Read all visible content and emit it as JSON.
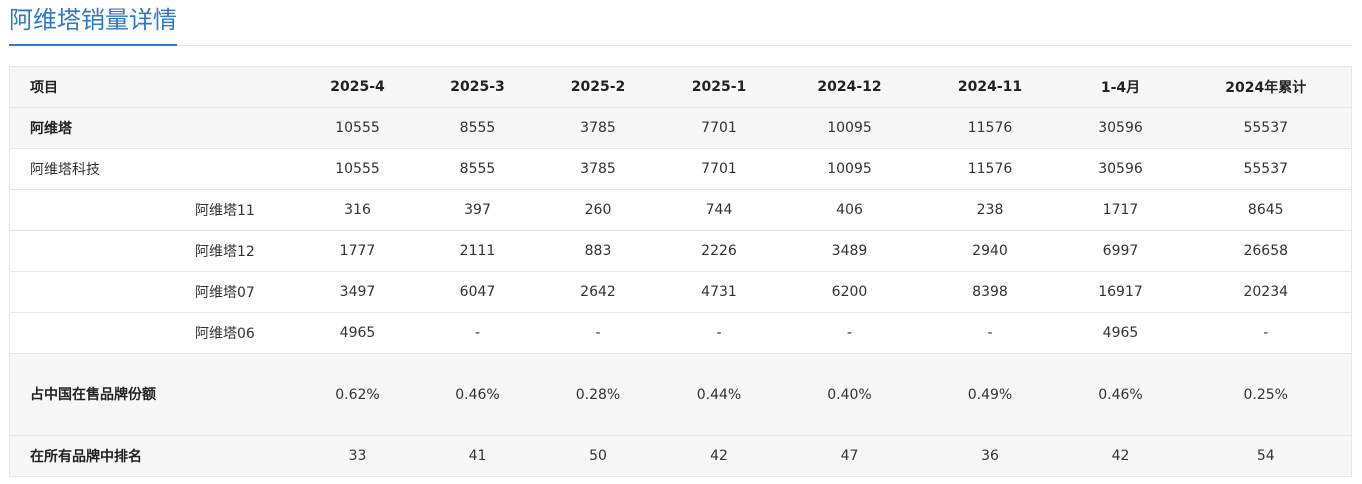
{
  "page_title": "阿维塔销量详情",
  "table": {
    "headers": [
      "项目",
      "2025-4",
      "2025-3",
      "2025-2",
      "2025-1",
      "2024-12",
      "2024-11",
      "1-4月",
      "2024年累计"
    ],
    "rows": [
      {
        "label": "阿维塔",
        "values": [
          "10555",
          "8555",
          "3785",
          "7701",
          "10095",
          "11576",
          "30596",
          "55537"
        ]
      },
      {
        "label": "阿维塔科技",
        "values": [
          "10555",
          "8555",
          "3785",
          "7701",
          "10095",
          "11576",
          "30596",
          "55537"
        ]
      },
      {
        "label": "阿维塔11",
        "values": [
          "316",
          "397",
          "260",
          "744",
          "406",
          "238",
          "1717",
          "8645"
        ]
      },
      {
        "label": "阿维塔12",
        "values": [
          "1777",
          "2111",
          "883",
          "2226",
          "3489",
          "2940",
          "6997",
          "26658"
        ]
      },
      {
        "label": "阿维塔07",
        "values": [
          "3497",
          "6047",
          "2642",
          "4731",
          "6200",
          "8398",
          "16917",
          "20234"
        ]
      },
      {
        "label": "阿维塔06",
        "values": [
          "4965",
          "-",
          "-",
          "-",
          "-",
          "-",
          "4965",
          "-"
        ]
      },
      {
        "label": "占中国在售品牌份额",
        "values": [
          "0.62%",
          "0.46%",
          "0.28%",
          "0.44%",
          "0.40%",
          "0.49%",
          "0.46%",
          "0.25%"
        ]
      },
      {
        "label": "在所有品牌中排名",
        "values": [
          "33",
          "41",
          "50",
          "42",
          "47",
          "36",
          "42",
          "54"
        ]
      }
    ]
  }
}
